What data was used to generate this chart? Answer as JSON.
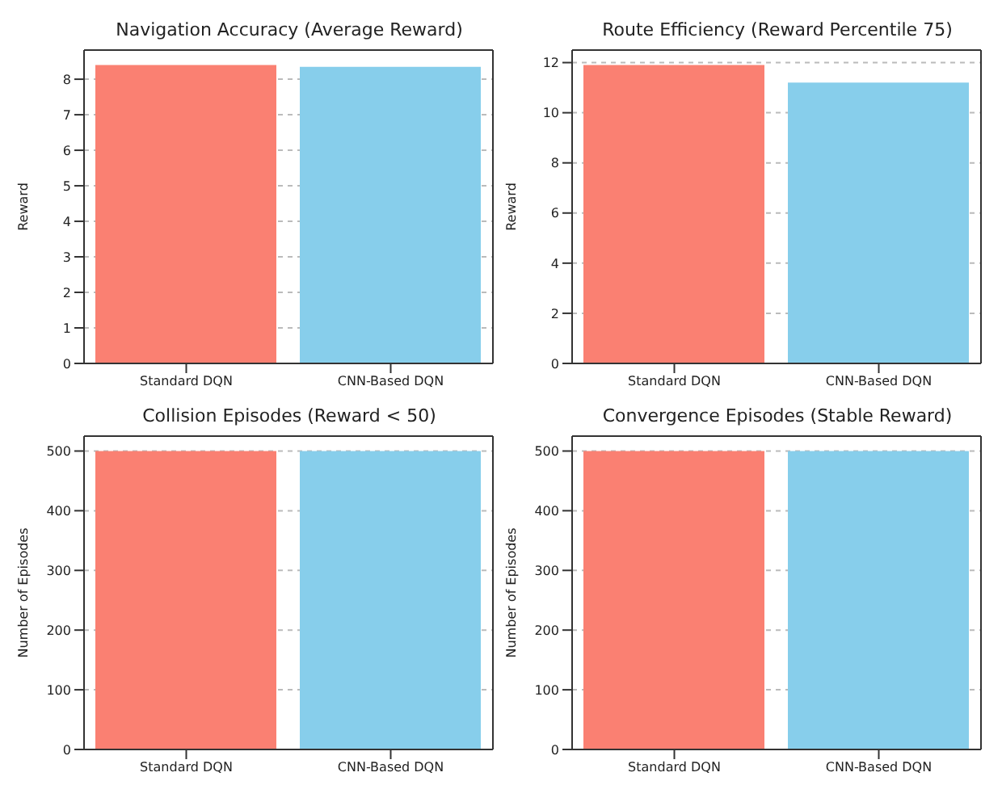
{
  "chart_data": [
    {
      "type": "bar",
      "title": "Navigation Accuracy (Average Reward)",
      "ylabel": "Reward",
      "categories": [
        "Standard DQN",
        "CNN-Based DQN"
      ],
      "values": [
        8.4,
        8.35
      ],
      "colors": [
        "#fa8072",
        "#87ceeb"
      ],
      "ylim": [
        0,
        8.82
      ],
      "yticks": [
        0,
        1,
        2,
        3,
        4,
        5,
        6,
        7,
        8
      ],
      "grid": "y",
      "legend": false
    },
    {
      "type": "bar",
      "title": "Route Efficiency (Reward Percentile 75)",
      "ylabel": "Reward",
      "categories": [
        "Standard DQN",
        "CNN-Based DQN"
      ],
      "values": [
        11.9,
        11.2
      ],
      "colors": [
        "#fa8072",
        "#87ceeb"
      ],
      "ylim": [
        0,
        12.5
      ],
      "yticks": [
        0,
        2,
        4,
        6,
        8,
        10,
        12
      ],
      "grid": "y",
      "legend": false
    },
    {
      "type": "bar",
      "title": "Collision Episodes (Reward < 50)",
      "ylabel": "Number of Episodes",
      "categories": [
        "Standard DQN",
        "CNN-Based DQN"
      ],
      "values": [
        500,
        500
      ],
      "colors": [
        "#fa8072",
        "#87ceeb"
      ],
      "ylim": [
        0,
        525
      ],
      "yticks": [
        0,
        100,
        200,
        300,
        400,
        500
      ],
      "grid": "y",
      "legend": false
    },
    {
      "type": "bar",
      "title": "Convergence Episodes (Stable Reward)",
      "ylabel": "Number of Episodes",
      "categories": [
        "Standard DQN",
        "CNN-Based DQN"
      ],
      "values": [
        500,
        500
      ],
      "colors": [
        "#fa8072",
        "#87ceeb"
      ],
      "ylim": [
        0,
        525
      ],
      "yticks": [
        0,
        100,
        200,
        300,
        400,
        500
      ],
      "grid": "y",
      "legend": false
    }
  ]
}
